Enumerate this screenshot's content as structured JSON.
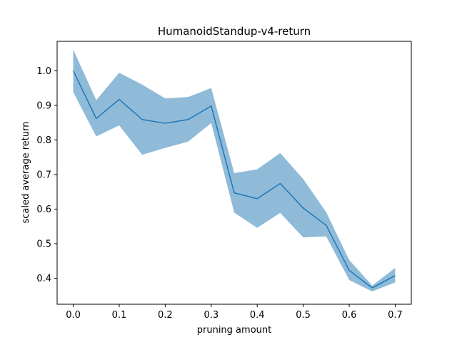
{
  "chart_data": {
    "type": "line",
    "title": "HumanoidStandup-v4-return",
    "xlabel": "pruning amount",
    "ylabel": "scaled average return",
    "xlim": [
      -0.035,
      0.735
    ],
    "ylim": [
      0.325,
      1.085
    ],
    "x_ticks": [
      0.0,
      0.1,
      0.2,
      0.3,
      0.4,
      0.5,
      0.6,
      0.7
    ],
    "x_tick_labels": [
      "0.0",
      "0.1",
      "0.2",
      "0.3",
      "0.4",
      "0.5",
      "0.6",
      "0.7"
    ],
    "y_ticks": [
      0.4,
      0.5,
      0.6,
      0.7,
      0.8,
      0.9,
      1.0
    ],
    "y_tick_labels": [
      "0.4",
      "0.5",
      "0.6",
      "0.7",
      "0.8",
      "0.9",
      "1.0"
    ],
    "grid": false,
    "legend": "none",
    "colors": {
      "line": "#1f77b4",
      "band": "#1f77b4"
    },
    "series": [
      {
        "x": [
          0.0,
          0.05,
          0.1,
          0.15,
          0.2,
          0.25,
          0.3,
          0.35,
          0.4,
          0.45,
          0.5,
          0.55,
          0.6,
          0.65,
          0.7
        ],
        "values": [
          1.0,
          0.862,
          0.917,
          0.859,
          0.848,
          0.859,
          0.898,
          0.647,
          0.63,
          0.674,
          0.603,
          0.553,
          0.423,
          0.372,
          0.408
        ],
        "lower": [
          0.938,
          0.81,
          0.842,
          0.757,
          0.777,
          0.795,
          0.849,
          0.59,
          0.546,
          0.589,
          0.518,
          0.521,
          0.395,
          0.362,
          0.388
        ],
        "upper": [
          1.061,
          0.915,
          0.994,
          0.96,
          0.92,
          0.924,
          0.95,
          0.704,
          0.715,
          0.762,
          0.687,
          0.591,
          0.453,
          0.379,
          0.43
        ]
      }
    ]
  }
}
